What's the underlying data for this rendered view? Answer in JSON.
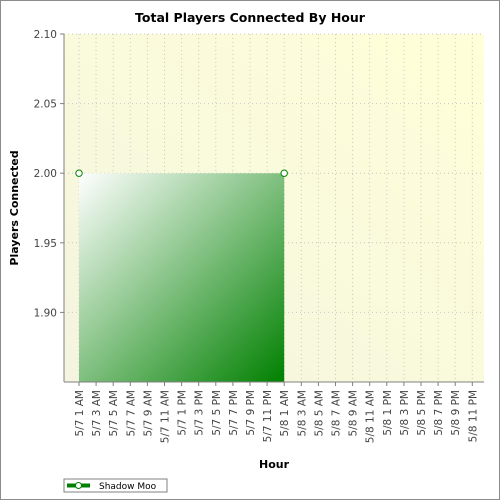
{
  "chart_data": {
    "type": "area",
    "title": "Total Players Connected By Hour",
    "xlabel": "Hour",
    "ylabel": "Players Connected",
    "ylim": [
      1.85,
      2.1
    ],
    "yticks": [
      "1.90",
      "1.95",
      "2.00",
      "2.05",
      "2.10"
    ],
    "categories": [
      "5/7 1 AM",
      "5/7 3 AM",
      "5/7 5 AM",
      "5/7 7 AM",
      "5/7 9 AM",
      "5/7 11 AM",
      "5/7 1 PM",
      "5/7 3 PM",
      "5/7 5 PM",
      "5/7 7 PM",
      "5/7 9 PM",
      "5/7 11 PM",
      "5/8 1 AM",
      "5/8 3 AM",
      "5/8 5 AM",
      "5/8 7 AM",
      "5/8 9 AM",
      "5/8 11 AM",
      "5/8 1 PM",
      "5/8 3 PM",
      "5/8 5 PM",
      "5/8 7 PM",
      "5/8 9 PM",
      "5/8 11 PM"
    ],
    "series": [
      {
        "name": "Shadow Moo",
        "x": [
          "5/7 1 AM",
          "5/8 1 AM"
        ],
        "values": [
          2.0,
          2.0
        ],
        "color": "#008000"
      }
    ],
    "grid": true,
    "legend": "bottom-left",
    "background_gradient": [
      "#f7f7e4",
      "#ffffd8"
    ]
  }
}
